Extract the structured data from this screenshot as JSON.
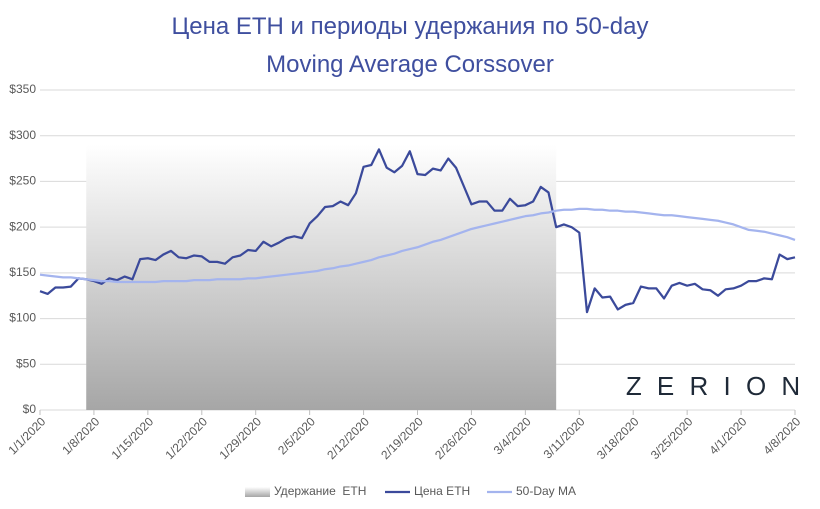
{
  "chart_data": {
    "type": "line",
    "title": "Цена ETH и периоды удержания по 50-day Moving Average Corssover",
    "watermark": "Z E R I O N",
    "categories": [
      "1/1/2020",
      null,
      null,
      null,
      null,
      null,
      null,
      "1/8/2020",
      null,
      null,
      null,
      null,
      null,
      null,
      "1/15/2020",
      null,
      null,
      null,
      null,
      null,
      null,
      "1/22/2020",
      null,
      null,
      null,
      null,
      null,
      null,
      "1/29/2020",
      null,
      null,
      null,
      null,
      null,
      null,
      "2/5/2020",
      null,
      null,
      null,
      null,
      null,
      null,
      "2/12/2020",
      null,
      null,
      null,
      null,
      null,
      null,
      "2/19/2020",
      null,
      null,
      null,
      null,
      null,
      null,
      "2/26/2020",
      null,
      null,
      null,
      null,
      null,
      null,
      "3/4/2020",
      null,
      null,
      null,
      null,
      null,
      null,
      "3/11/2020",
      null,
      null,
      null,
      null,
      null,
      null,
      "3/18/2020",
      null,
      null,
      null,
      null,
      null,
      null,
      "3/25/2020",
      null,
      null,
      null,
      null,
      null,
      null,
      "4/1/2020",
      null,
      null,
      null,
      null,
      null,
      null,
      "4/8/2020"
    ],
    "series": [
      {
        "name": "Удержание  ETH",
        "type": "area",
        "color": "#a6a6a6",
        "values": [
          null,
          null,
          null,
          null,
          null,
          null,
          290,
          290,
          290,
          290,
          290,
          290,
          290,
          290,
          290,
          290,
          290,
          290,
          290,
          290,
          290,
          290,
          290,
          290,
          290,
          290,
          290,
          290,
          290,
          290,
          290,
          290,
          290,
          290,
          290,
          290,
          290,
          290,
          290,
          290,
          290,
          290,
          290,
          290,
          290,
          290,
          290,
          290,
          290,
          290,
          290,
          290,
          290,
          290,
          290,
          290,
          290,
          290,
          290,
          290,
          290,
          290,
          290,
          290,
          290,
          290,
          290,
          290,
          null,
          null,
          null,
          null,
          null,
          null,
          null,
          null,
          null,
          null,
          null,
          null,
          null,
          null,
          null,
          null,
          null,
          null,
          null,
          null,
          null,
          null,
          null,
          null,
          null,
          null,
          null,
          null,
          null,
          null,
          null
        ]
      },
      {
        "name": "Цена ETH",
        "type": "line",
        "color": "#3b4a9b",
        "values": [
          130,
          127,
          134,
          134,
          135,
          144,
          143,
          141,
          138,
          144,
          142,
          146,
          143,
          165,
          166,
          164,
          170,
          174,
          167,
          166,
          169,
          168,
          162,
          162,
          160,
          167,
          169,
          175,
          174,
          184,
          179,
          183,
          188,
          190,
          188,
          204,
          212,
          222,
          223,
          228,
          224,
          237,
          266,
          268,
          285,
          265,
          260,
          267,
          283,
          258,
          257,
          264,
          262,
          275,
          265,
          245,
          225,
          228,
          228,
          218,
          218,
          231,
          223,
          224,
          228,
          244,
          238,
          200,
          203,
          200,
          194,
          107,
          133,
          123,
          124,
          110,
          115,
          117,
          135,
          133,
          133,
          122,
          136,
          139,
          136,
          138,
          132,
          131,
          125,
          132,
          133,
          136,
          141,
          141,
          144,
          143,
          170,
          165,
          167
        ]
      },
      {
        "name": "50-Day MA",
        "type": "line",
        "color": "#a4b4ee",
        "values": [
          148,
          147,
          146,
          145,
          145,
          144,
          143,
          142,
          141,
          141,
          140,
          140,
          140,
          140,
          140,
          140,
          141,
          141,
          141,
          141,
          142,
          142,
          142,
          143,
          143,
          143,
          143,
          144,
          144,
          145,
          146,
          147,
          148,
          149,
          150,
          151,
          152,
          154,
          155,
          157,
          158,
          160,
          162,
          164,
          167,
          169,
          171,
          174,
          176,
          178,
          181,
          184,
          186,
          189,
          192,
          195,
          198,
          200,
          202,
          204,
          206,
          208,
          210,
          212,
          213,
          215,
          216,
          218,
          219,
          219,
          220,
          220,
          219,
          219,
          218,
          218,
          217,
          217,
          216,
          215,
          214,
          213,
          213,
          212,
          211,
          210,
          209,
          208,
          207,
          205,
          203,
          200,
          197,
          196,
          195,
          193,
          191,
          189,
          186
        ]
      }
    ],
    "ylim": [
      0,
      350
    ],
    "yticks": [
      {
        "value": 0,
        "label": "$0"
      },
      {
        "value": 50,
        "label": "$50"
      },
      {
        "value": 100,
        "label": "$100"
      },
      {
        "value": 150,
        "label": "$150"
      },
      {
        "value": 200,
        "label": "$200"
      },
      {
        "value": 250,
        "label": "$250"
      },
      {
        "value": 300,
        "label": "$300"
      },
      {
        "value": 350,
        "label": "$350"
      }
    ],
    "grid": true,
    "legend": "bottom"
  }
}
